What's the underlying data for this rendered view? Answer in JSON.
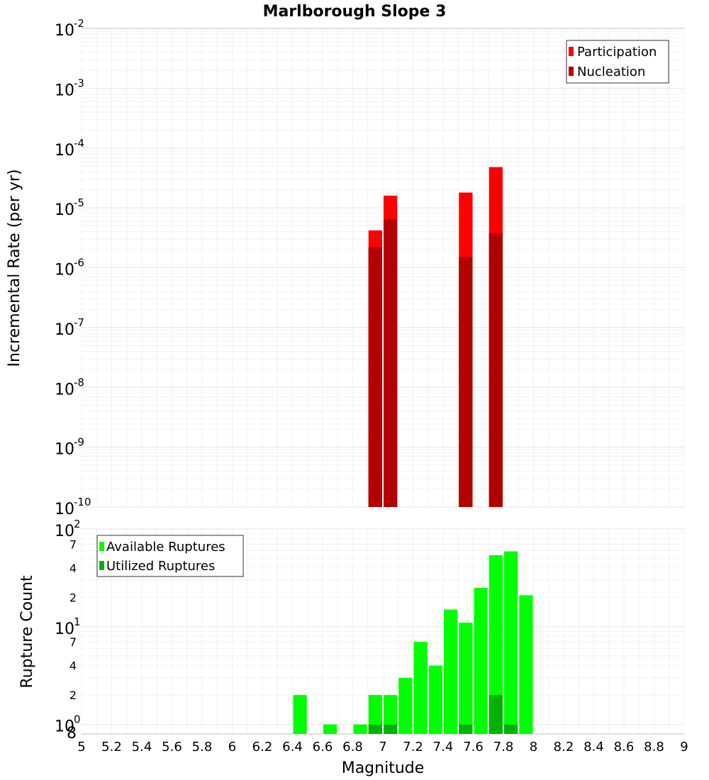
{
  "chart_data": [
    {
      "type": "bar",
      "title": "Marlborough Slope 3",
      "xlabel": "Magnitude",
      "ylabel": "Incremental Rate (per yr)",
      "yscale": "log",
      "xlim": [
        5,
        9
      ],
      "ylim": [
        1e-10,
        0.01
      ],
      "y_ticks": [
        {
          "base": "10",
          "exp": "-2"
        },
        {
          "base": "10",
          "exp": "-3"
        },
        {
          "base": "10",
          "exp": "-4"
        },
        {
          "base": "10",
          "exp": "-5"
        },
        {
          "base": "10",
          "exp": "-6"
        },
        {
          "base": "10",
          "exp": "-7"
        },
        {
          "base": "10",
          "exp": "-8"
        },
        {
          "base": "10",
          "exp": "-9"
        },
        {
          "base": "10",
          "exp": "-10"
        }
      ],
      "legend_position": "top-right",
      "series": [
        {
          "name": "Participation",
          "color": "#ff0000",
          "x": [
            6.95,
            7.05,
            7.55,
            7.75
          ],
          "values": [
            4.2e-06,
            1.6e-05,
            1.8e-05,
            4.8e-05
          ]
        },
        {
          "name": "Nucleation",
          "color": "#b30000",
          "x": [
            6.95,
            7.05,
            7.55,
            7.75
          ],
          "values": [
            2.2e-06,
            6.5e-06,
            1.5e-06,
            3.8e-06
          ]
        }
      ]
    },
    {
      "type": "bar",
      "xlabel": "Magnitude",
      "ylabel": "Rupture Count",
      "yscale": "log",
      "xlim": [
        5,
        9
      ],
      "ylim": [
        0.8,
        100
      ],
      "x_ticks": [
        "5",
        "5.2",
        "5.4",
        "5.6",
        "5.8",
        "6",
        "6.2",
        "6.4",
        "6.6",
        "6.8",
        "7",
        "7.2",
        "7.4",
        "7.6",
        "7.8",
        "8",
        "8.2",
        "8.4",
        "8.6",
        "8.8",
        "9"
      ],
      "y_major_ticks": [
        {
          "base": "10",
          "exp": "2"
        },
        {
          "base": "10",
          "exp": "1"
        },
        {
          "base": "10",
          "exp": "0"
        }
      ],
      "y_minor_ticks": [
        "7",
        "4",
        "2",
        "7",
        "4",
        "2"
      ],
      "y_bottom_label": "8",
      "legend_position": "top-left",
      "series": [
        {
          "name": "Available Ruptures",
          "color": "#00ff00",
          "x": [
            6.45,
            6.65,
            6.85,
            6.95,
            7.05,
            7.15,
            7.25,
            7.35,
            7.45,
            7.55,
            7.65,
            7.75,
            7.85,
            7.95
          ],
          "values": [
            2,
            1,
            1,
            2,
            2,
            3,
            7,
            4,
            15,
            11,
            25,
            54,
            59,
            21
          ]
        },
        {
          "name": "Utilized Ruptures",
          "color": "#00b300",
          "x": [
            6.95,
            7.05,
            7.55,
            7.75,
            7.85
          ],
          "values": [
            1,
            1,
            1,
            2,
            1
          ]
        }
      ]
    }
  ]
}
